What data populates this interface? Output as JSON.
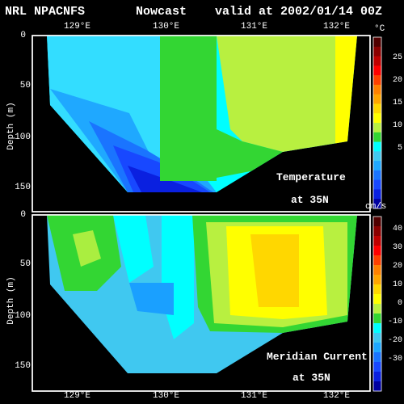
{
  "header": {
    "model": "NRL NPACNFS",
    "type": "Nowcast",
    "valid": "valid at 2002/01/14 00Z"
  },
  "panels": {
    "lon_ticks": [
      "129°E",
      "130°E",
      "131°E",
      "132°E"
    ],
    "depth_label": "Depth (m)",
    "depth_ticks": [
      "0",
      "50",
      "100",
      "150"
    ],
    "temperature": {
      "title": "Temperature",
      "latitude": "at 35N"
    },
    "current": {
      "title": "Meridian Current",
      "latitude": "at 35N"
    }
  },
  "colorbars": {
    "temperature": {
      "unit": "°C",
      "labels": [
        "25",
        "20",
        "15",
        "10",
        "5"
      ],
      "colors": [
        "#500000",
        "#8b0000",
        "#c00000",
        "#ff0000",
        "#ff4000",
        "#ff8000",
        "#ffa500",
        "#ffd700",
        "#ffff00",
        "#b8f040",
        "#33d633",
        "#00ffff",
        "#40c8f0",
        "#1fa8ff",
        "#1a74ff",
        "#1848ff",
        "#0a20e0",
        "#0000a0"
      ]
    },
    "current": {
      "unit": "cm/s",
      "labels": [
        "40",
        "30",
        "20",
        "10",
        "0",
        "-10",
        "-20",
        "-30"
      ],
      "colors": [
        "#500000",
        "#8b0000",
        "#c00000",
        "#ff0000",
        "#ff4000",
        "#ff8000",
        "#ffa500",
        "#ffd700",
        "#ffff00",
        "#b8f040",
        "#33d633",
        "#00ffff",
        "#40c8f0",
        "#1fa8ff",
        "#1a74ff",
        "#1848ff",
        "#0a20e0",
        "#0000a0"
      ]
    }
  }
}
